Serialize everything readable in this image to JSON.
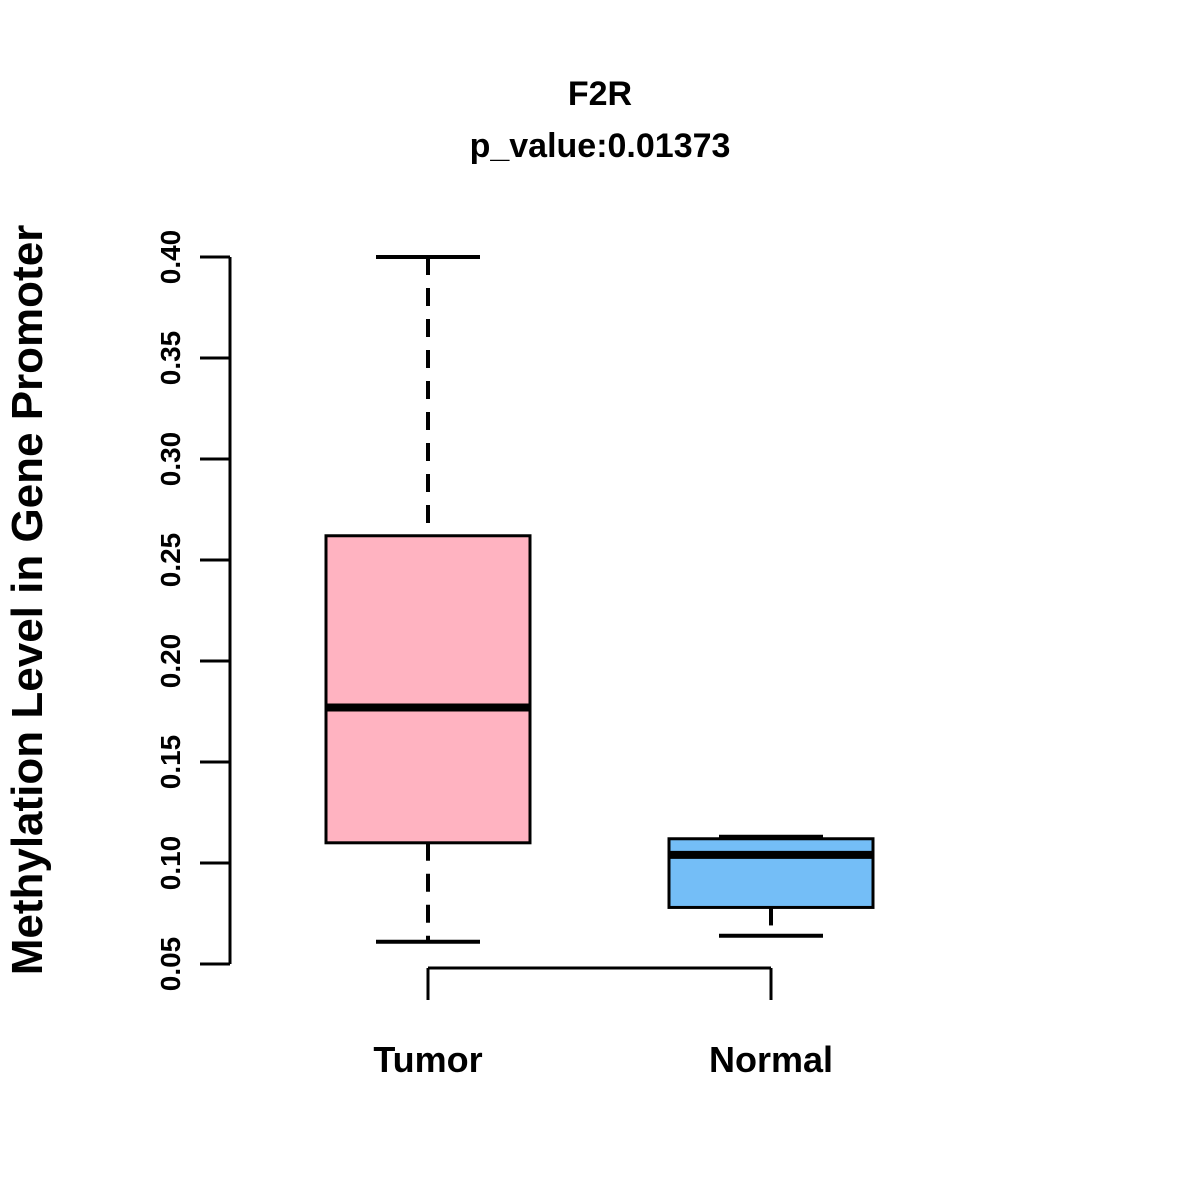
{
  "figure": {
    "background": "#FFFFFF",
    "gene": "F2R",
    "p_value": 0.01373
  },
  "chart_data": {
    "type": "box",
    "title": "F2R",
    "subtitle": "p_value:0.01373",
    "ylabel": "Methylation Level in Gene Promoter",
    "xlabel": "",
    "categories": [
      "Tumor",
      "Normal"
    ],
    "series": [
      {
        "name": "Tumor",
        "color": "#FFB3C1",
        "whisker_low": 0.061,
        "q1": 0.11,
        "median": 0.177,
        "q3": 0.262,
        "whisker_high": 0.4
      },
      {
        "name": "Normal",
        "color": "#74BEF7",
        "whisker_low": 0.064,
        "q1": 0.078,
        "median": 0.104,
        "q3": 0.112,
        "whisker_high": 0.113
      }
    ],
    "y_axis": {
      "min": 0.05,
      "max": 0.4,
      "tick_step": 0.05,
      "tick_labels": [
        "0.05",
        "0.10",
        "0.15",
        "0.20",
        "0.25",
        "0.30",
        "0.35",
        "0.40"
      ]
    },
    "grid": false,
    "legend": "none",
    "line_color": "#000000"
  }
}
